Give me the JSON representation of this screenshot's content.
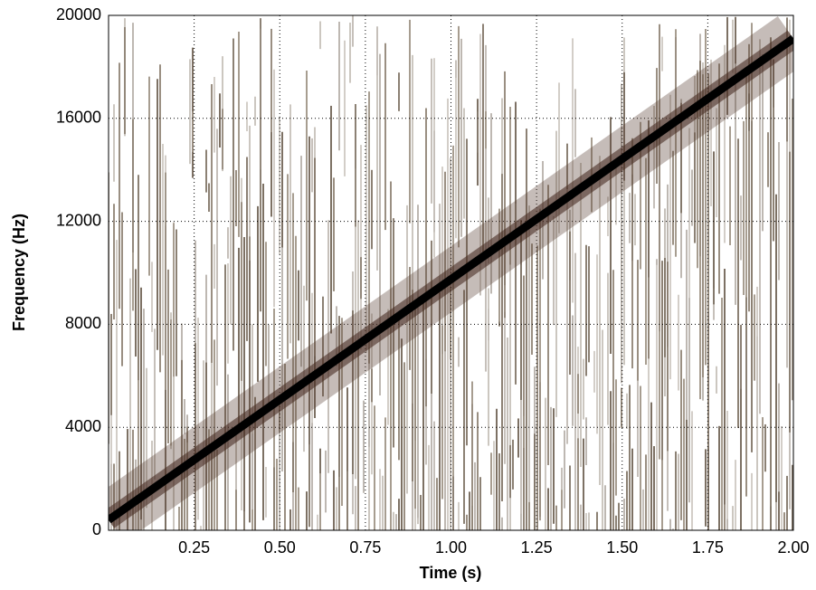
{
  "chart_data": {
    "type": "line",
    "x_label": "Time (s)",
    "y_label": "Frequency (Hz)",
    "x": [
      0,
      2
    ],
    "values": [
      400,
      19100
    ],
    "color": "#000000",
    "xlim": [
      0,
      2
    ],
    "ylim": [
      0,
      20000
    ],
    "xticks": [
      0.25,
      {
        "value": 0.5,
        "label": "0.50"
      },
      0.75,
      {
        "value": 1,
        "label": "1.00"
      },
      1.25,
      {
        "value": 1.5,
        "label": "1.50"
      },
      1.75,
      {
        "value": 2,
        "label": "2.00"
      }
    ],
    "yticks": [
      0,
      4000,
      8000,
      12000,
      16000,
      20000
    ],
    "grid": true
  }
}
